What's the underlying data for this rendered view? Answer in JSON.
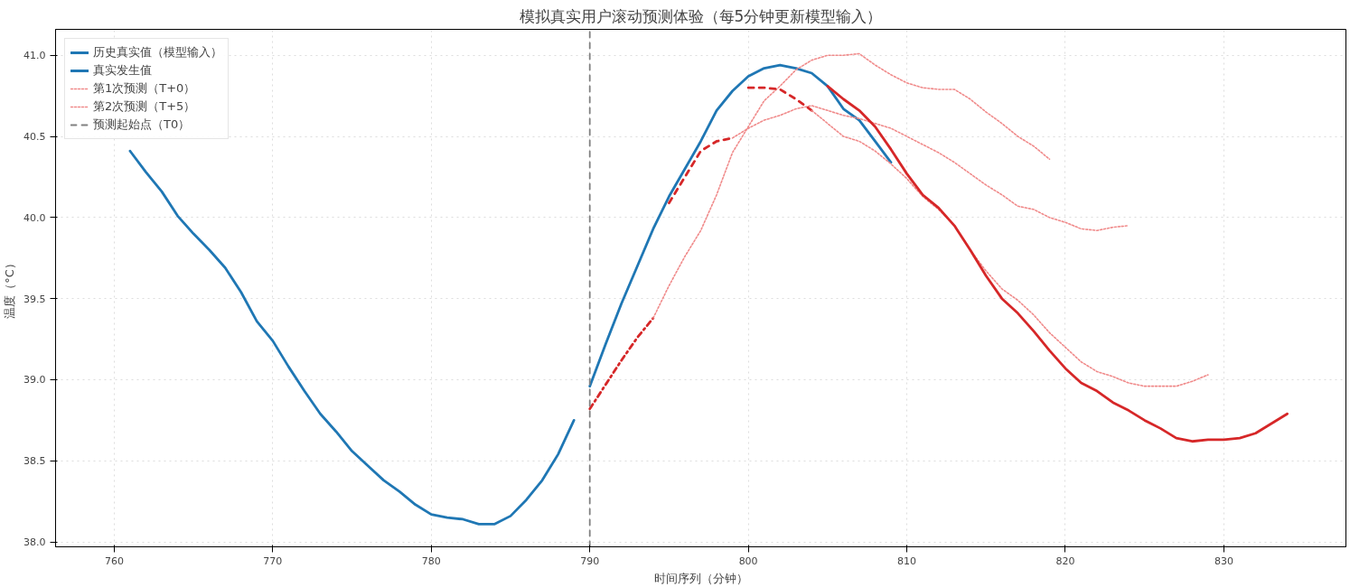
{
  "chart_data": {
    "type": "line",
    "title": "模拟真实用户滚动预测体验（每5分钟更新模型输入）",
    "xlabel": "时间序列（分钟）",
    "ylabel": "温度（°C）",
    "xlim": [
      756.3,
      837.7
    ],
    "ylim": [
      37.97,
      41.16
    ],
    "xticks": [
      760,
      770,
      780,
      790,
      800,
      810,
      820,
      830
    ],
    "yticks": [
      {
        "value": 38,
        "label": "38.0"
      },
      38.5,
      {
        "value": 39,
        "label": "39.0"
      },
      39.5,
      {
        "value": 40,
        "label": "40.0"
      },
      40.5,
      {
        "value": 41,
        "label": "41.0"
      }
    ],
    "grid": true,
    "legend": "top left",
    "marker": "none",
    "series": [
      {
        "name": "历史真实值（模型输入）",
        "color": "#1f77b4",
        "line_style": "solid",
        "x": [
          761,
          762,
          763,
          764,
          765,
          766,
          767,
          768,
          769,
          770,
          771,
          772,
          773,
          774,
          775,
          776,
          777,
          778,
          779,
          780,
          781,
          782,
          783,
          784,
          785,
          786,
          787,
          788,
          789
        ],
        "values": [
          40.41,
          40.28,
          40.16,
          40.01,
          39.9,
          39.8,
          39.69,
          39.54,
          39.36,
          39.24,
          39.08,
          38.93,
          38.79,
          38.68,
          38.56,
          38.47,
          38.38,
          38.31,
          38.23,
          38.17,
          38.15,
          38.14,
          38.11,
          38.11,
          38.16,
          38.26,
          38.38,
          38.54,
          38.75
        ]
      },
      {
        "name": "真实发生值",
        "color": "#1f77b4",
        "line_style": "solid",
        "x": [
          790,
          791,
          792,
          793,
          794,
          795,
          796,
          797,
          798,
          799,
          800,
          801,
          802,
          803,
          804,
          805,
          806,
          807,
          808,
          809
        ],
        "values": [
          38.96,
          39.22,
          39.47,
          39.7,
          39.93,
          40.13,
          40.3,
          40.47,
          40.66,
          40.78,
          40.87,
          40.92,
          40.94,
          40.92,
          40.89,
          40.81,
          40.67,
          40.6,
          40.47,
          40.34
        ]
      },
      {
        "color": "#d62728",
        "line_style": "dashdot",
        "x": [
          790,
          791,
          792,
          793,
          794
        ],
        "values": [
          38.82,
          38.97,
          39.12,
          39.26,
          39.38
        ]
      },
      {
        "name": "第1次预测（T+0）",
        "color": "#f08a8a",
        "line_style": "dotted",
        "x": [
          794,
          795,
          796,
          797,
          798,
          799,
          800,
          801,
          802,
          803,
          804,
          805,
          806,
          807,
          808,
          809,
          810,
          811,
          812,
          813,
          814,
          815,
          816,
          817,
          818,
          819
        ],
        "values": [
          39.38,
          39.58,
          39.76,
          39.92,
          40.14,
          40.4,
          40.56,
          40.72,
          40.81,
          40.91,
          40.97,
          41.0,
          41.0,
          41.01,
          40.94,
          40.88,
          40.83,
          40.8,
          40.79,
          40.79,
          40.73,
          40.65,
          40.58,
          40.5,
          40.44,
          40.36
        ]
      },
      {
        "color": "#d62728",
        "line_style": "dashed",
        "x": [
          795,
          796,
          797,
          798,
          799
        ],
        "values": [
          40.09,
          40.25,
          40.41,
          40.47,
          40.49
        ]
      },
      {
        "name": "第2次预测（T+5）",
        "color": "#f08a8a",
        "line_style": "dotted",
        "x": [
          799,
          800,
          801,
          802,
          803,
          804,
          805,
          806,
          807,
          808,
          809,
          810,
          811,
          812,
          813,
          814,
          815,
          816,
          817,
          818,
          819,
          820,
          821,
          822,
          823,
          824
        ],
        "values": [
          40.49,
          40.55,
          40.6,
          40.63,
          40.67,
          40.69,
          40.66,
          40.63,
          40.61,
          40.58,
          40.55,
          40.5,
          40.45,
          40.4,
          40.34,
          40.27,
          40.2,
          40.14,
          40.07,
          40.05,
          40.0,
          39.97,
          39.93,
          39.92,
          39.94,
          39.95
        ]
      },
      {
        "color": "#d62728",
        "line_style": "dashed",
        "x": [
          800,
          801,
          802,
          803,
          804
        ],
        "values": [
          40.8,
          40.8,
          40.79,
          40.73,
          40.66
        ]
      },
      {
        "color": "#f08a8a",
        "line_style": "dotted",
        "x": [
          804,
          805,
          806,
          807,
          808,
          809,
          810,
          811,
          812,
          813,
          814,
          815,
          816,
          817,
          818,
          819,
          820,
          821,
          822,
          823,
          824,
          825,
          826,
          827,
          828,
          829
        ],
        "values": [
          40.66,
          40.58,
          40.5,
          40.47,
          40.41,
          40.33,
          40.24,
          40.13,
          40.05,
          39.95,
          39.8,
          39.67,
          39.56,
          39.49,
          39.4,
          39.29,
          39.2,
          39.11,
          39.05,
          39.02,
          38.98,
          38.96,
          38.96,
          38.96,
          38.99,
          39.03
        ]
      },
      {
        "color": "#d62728",
        "line_style": "solid",
        "x": [
          805,
          806,
          807,
          808,
          809,
          810,
          811,
          812,
          813,
          814,
          815,
          816,
          817,
          818,
          819,
          820,
          821,
          822,
          823,
          824,
          825,
          826,
          827,
          828,
          829,
          830,
          831,
          832,
          833,
          834
        ],
        "values": [
          40.81,
          40.73,
          40.66,
          40.56,
          40.42,
          40.27,
          40.14,
          40.06,
          39.95,
          39.8,
          39.64,
          39.5,
          39.41,
          39.3,
          39.18,
          39.07,
          38.98,
          38.93,
          38.86,
          38.81,
          38.75,
          38.7,
          38.64,
          38.62,
          38.63,
          38.63,
          38.64,
          38.67,
          38.73,
          38.79
        ]
      },
      {
        "name": "预测起始点（T0）",
        "color": "#808080",
        "line_style": "dashed",
        "x": [
          790,
          790
        ],
        "values": [
          37.97,
          41.16
        ]
      }
    ]
  }
}
